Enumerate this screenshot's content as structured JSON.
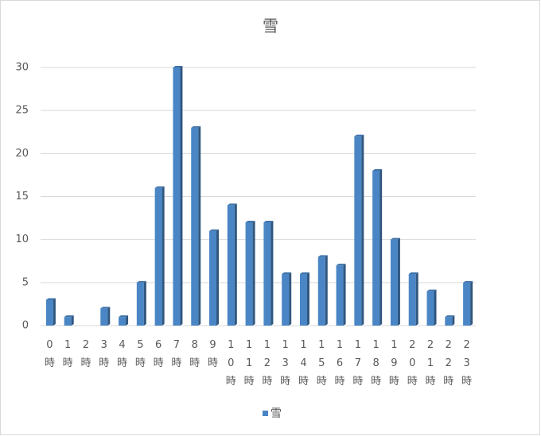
{
  "chart_data": {
    "type": "bar",
    "title": "雪",
    "categories": [
      "0時",
      "1時",
      "2時",
      "3時",
      "4時",
      "5時",
      "6時",
      "7時",
      "8時",
      "9時",
      "10時",
      "11時",
      "12時",
      "13時",
      "14時",
      "15時",
      "16時",
      "17時",
      "18時",
      "19時",
      "20時",
      "21時",
      "22時",
      "23時"
    ],
    "series": [
      {
        "name": "雪",
        "color": "#4a86c5",
        "values": [
          3,
          1,
          0,
          2,
          1,
          5,
          16,
          30,
          23,
          11,
          14,
          12,
          12,
          6,
          6,
          8,
          7,
          22,
          18,
          10,
          6,
          4,
          1,
          5
        ]
      }
    ],
    "ylim": [
      0,
      30
    ],
    "yticks": [
      0,
      5,
      10,
      15,
      20,
      25,
      30
    ],
    "grid": true,
    "legend": "bottom"
  }
}
